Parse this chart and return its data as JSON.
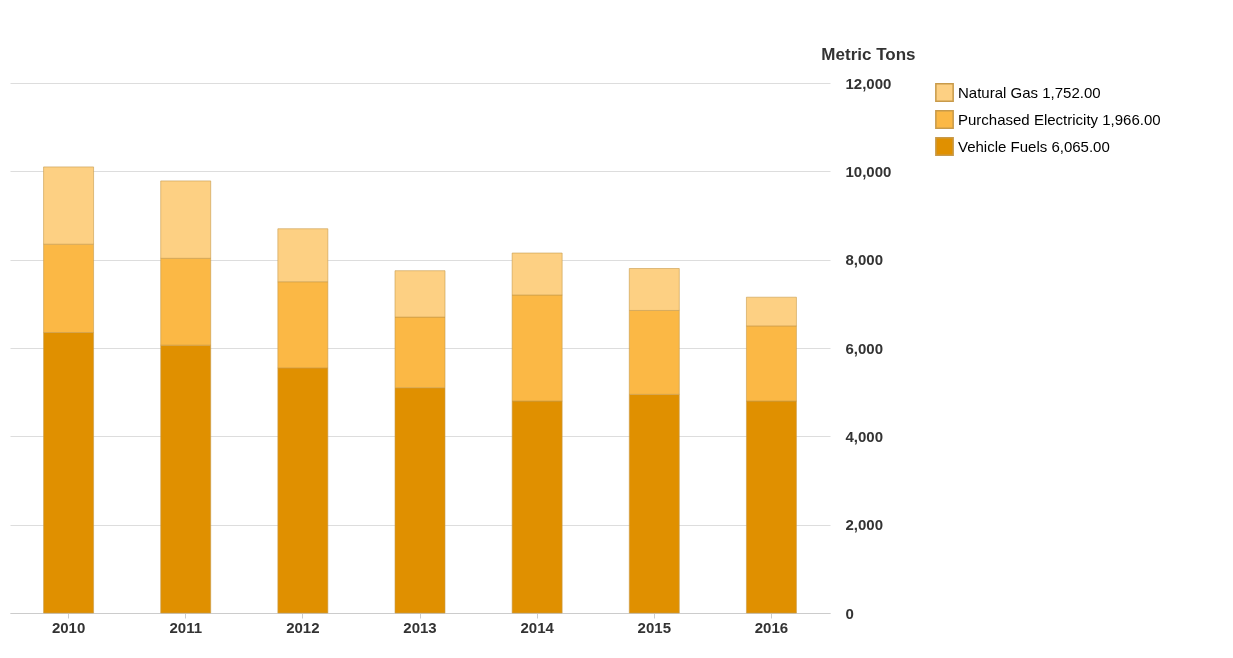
{
  "chart_data": {
    "type": "bar",
    "stacked": true,
    "ylabel": "Metric Tons",
    "categories": [
      "2010",
      "2011",
      "2012",
      "2013",
      "2014",
      "2015",
      "2016"
    ],
    "series": [
      {
        "name": "Vehicle Fuels 6,065.00",
        "color": "#e09000",
        "values": [
          6350,
          6065,
          5550,
          5100,
          4800,
          4950,
          4800
        ]
      },
      {
        "name": "Purchased Electricity 1,966.00",
        "color": "#fbb845",
        "values": [
          2000,
          1966,
          1950,
          1600,
          2400,
          1900,
          1700
        ]
      },
      {
        "name": "Natural Gas 1,752.00",
        "color": "#fdd083",
        "values": [
          1750,
          1752,
          1200,
          1050,
          950,
          950,
          650
        ]
      }
    ],
    "ylim": [
      0,
      12000
    ],
    "yticks": [
      {
        "value": 0,
        "label": "0"
      },
      {
        "value": 2000,
        "label": "2,000"
      },
      {
        "value": 4000,
        "label": "4,000"
      },
      {
        "value": 6000,
        "label": "6,000"
      },
      {
        "value": 8000,
        "label": "8,000"
      },
      {
        "value": 10000,
        "label": "10,000"
      },
      {
        "value": 12000,
        "label": "12,000"
      }
    ],
    "grid": "y",
    "legend": "right"
  }
}
